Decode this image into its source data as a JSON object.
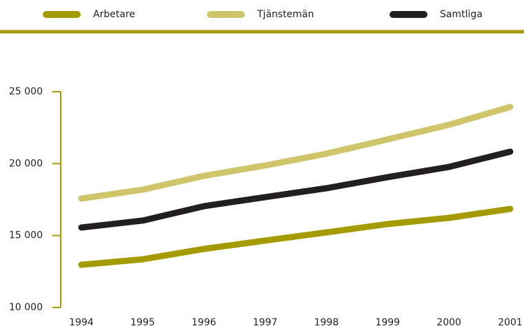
{
  "chart_data": {
    "type": "line",
    "x": [
      "1994",
      "1995",
      "1996",
      "1997",
      "1998",
      "1999",
      "2000",
      "2001"
    ],
    "series": [
      {
        "name": "Arbetare",
        "color": "#a39b00",
        "values": [
          12970,
          13350,
          14070,
          14650,
          15220,
          15800,
          16230,
          16850
        ]
      },
      {
        "name": "Tjänstemän",
        "color": "#cfc56b",
        "values": [
          17570,
          18190,
          19150,
          19870,
          20690,
          21690,
          22700,
          23940
        ]
      },
      {
        "name": "Samtliga",
        "color": "#231f20",
        "values": [
          15560,
          16040,
          17040,
          17670,
          18290,
          19060,
          19770,
          20830
        ]
      }
    ],
    "ylim": [
      10000,
      25000
    ],
    "yticks": [
      {
        "value": 10000,
        "label": "10 000"
      },
      {
        "value": 15000,
        "label": "15 000"
      },
      {
        "value": 20000,
        "label": "20 000"
      },
      {
        "value": 25000,
        "label": "25 000"
      }
    ],
    "axis_color": "#a39b00"
  }
}
